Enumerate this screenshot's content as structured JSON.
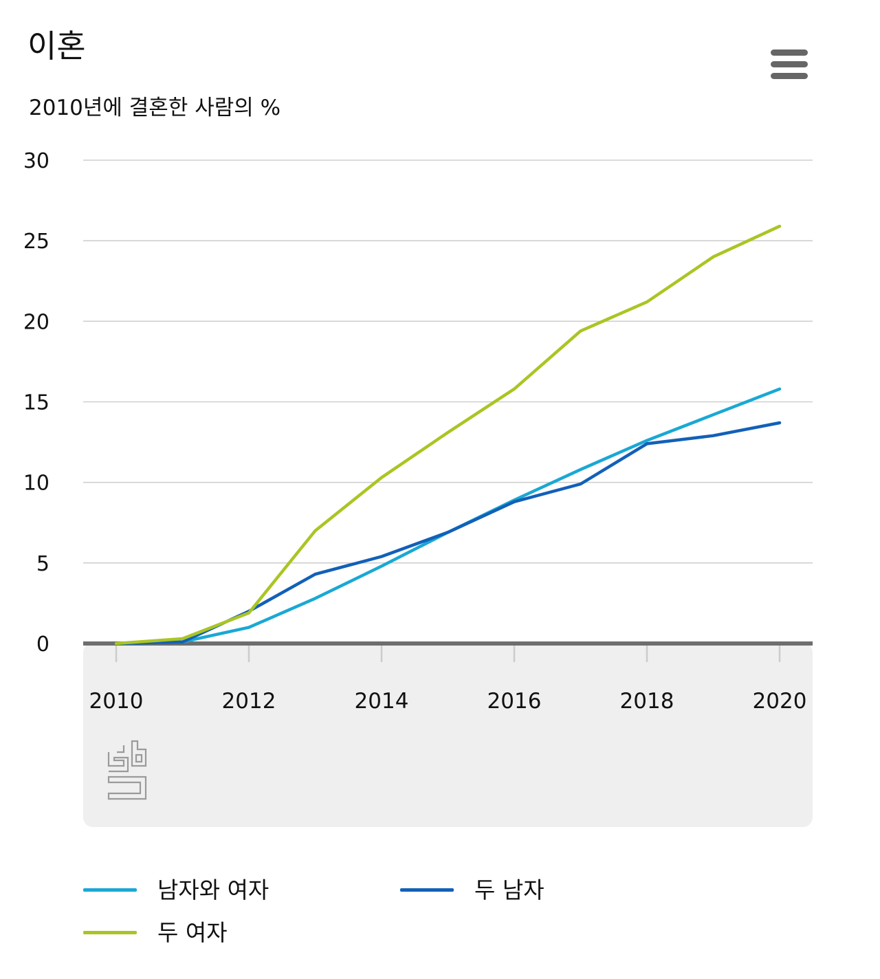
{
  "chart_data": {
    "type": "line",
    "title": "이혼",
    "subtitle": "2010년에 결혼한 사람의 %",
    "x": [
      2010,
      2011,
      2012,
      2013,
      2014,
      2015,
      2016,
      2017,
      2018,
      2019,
      2020
    ],
    "x_ticks": [
      "2010",
      "2012",
      "2014",
      "2016",
      "2018",
      "2020"
    ],
    "y_ticks": [
      "0",
      "5",
      "10",
      "15",
      "20",
      "25",
      "30"
    ],
    "ylim": [
      0,
      30
    ],
    "grid": true,
    "legend_position": "bottom",
    "series": [
      {
        "name": "남자와 여자",
        "color": "#1aa8d4",
        "values": [
          0,
          0.1,
          1.0,
          2.8,
          4.8,
          6.9,
          8.9,
          10.8,
          12.6,
          14.2,
          15.8
        ]
      },
      {
        "name": "두 남자",
        "color": "#1260b8",
        "values": [
          0,
          0.1,
          2.0,
          4.3,
          5.4,
          6.9,
          8.8,
          9.9,
          12.4,
          12.9,
          13.7
        ]
      },
      {
        "name": "두 여자",
        "color": "#aac523",
        "values": [
          0,
          0.3,
          1.9,
          7.0,
          10.3,
          13.1,
          15.8,
          19.4,
          21.2,
          24.0,
          25.9
        ]
      }
    ]
  },
  "icons": {
    "menu": "hamburger-menu-icon",
    "logo": "cbs-logo-icon"
  }
}
